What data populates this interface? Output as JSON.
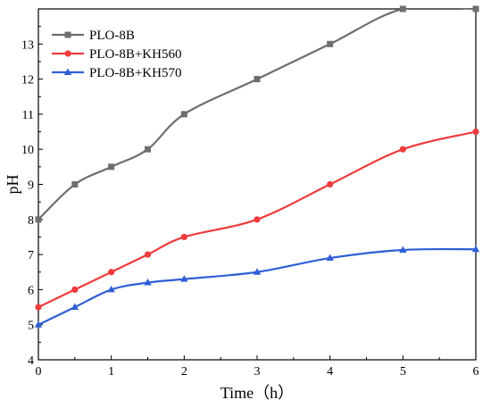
{
  "chart_data": {
    "type": "line",
    "title": "",
    "xlabel": "Time（h）",
    "ylabel": "pH",
    "xlim": [
      0,
      6
    ],
    "ylim": [
      4,
      14
    ],
    "x_ticks": [
      "0",
      "1",
      "2",
      "3",
      "4",
      "5",
      "6"
    ],
    "y_ticks": [
      "4",
      "5",
      "6",
      "7",
      "8",
      "9",
      "10",
      "11",
      "12",
      "13"
    ],
    "grid": false,
    "legend_position": "top-left",
    "series": [
      {
        "name": "PLO-8B",
        "color": "#6e6e6e",
        "marker": "square",
        "x": [
          0,
          0.5,
          1,
          1.5,
          2,
          3,
          4,
          5,
          6
        ],
        "y": [
          8,
          9,
          9.5,
          10,
          11,
          12,
          13,
          14,
          14
        ]
      },
      {
        "name": "PLO-8B+KH560",
        "color": "#ef3b3b",
        "marker": "circle",
        "x": [
          0,
          0.5,
          1,
          1.5,
          2,
          3,
          4,
          5,
          6
        ],
        "y": [
          5.5,
          6,
          6.5,
          7,
          7.5,
          8,
          9,
          10,
          10.5
        ]
      },
      {
        "name": "PLO-8B+KH570",
        "color": "#2f5fd6",
        "marker": "triangle",
        "x": [
          0,
          0.5,
          1,
          1.5,
          2,
          3,
          4,
          5,
          6
        ],
        "y": [
          5,
          5.5,
          6,
          6.2,
          6.3,
          6.5,
          6.9,
          7.13,
          7.15
        ]
      }
    ]
  }
}
